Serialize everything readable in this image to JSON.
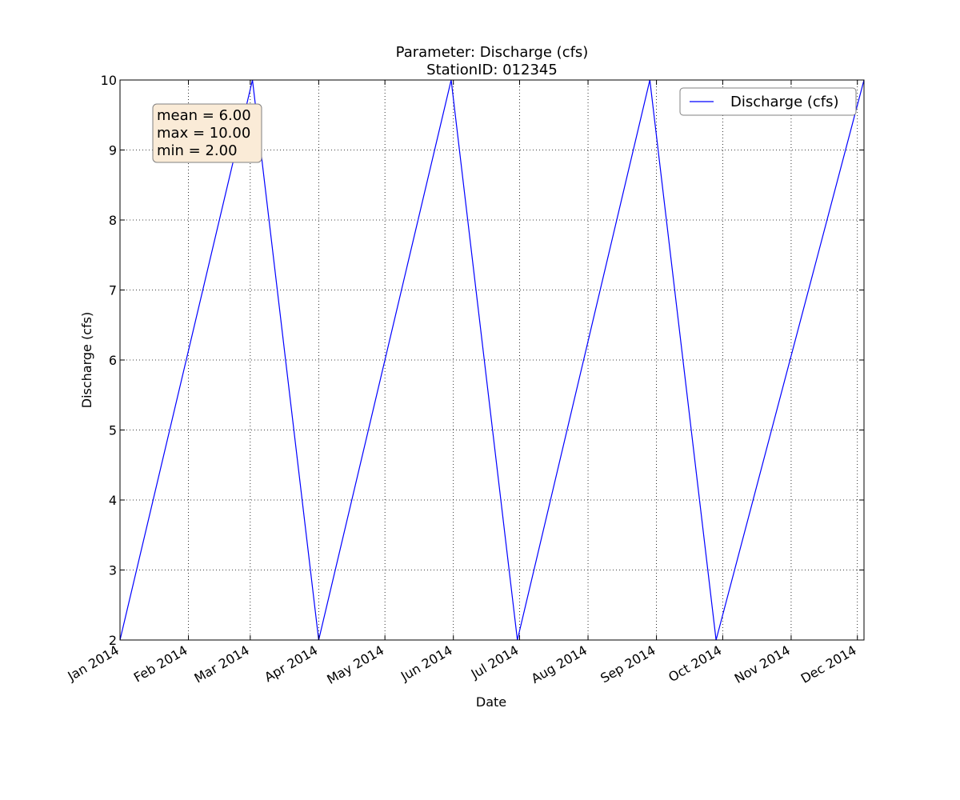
{
  "chart_data": {
    "type": "line",
    "title": "Parameter: Discharge (cfs)",
    "subtitle": "StationID: 012345",
    "xlabel": "Date",
    "ylabel": "Discharge (cfs)",
    "xlim": [
      "2014-01-01",
      "2014-12-04"
    ],
    "ylim": [
      2,
      10
    ],
    "yticks": [
      2,
      3,
      4,
      5,
      6,
      7,
      8,
      9,
      10
    ],
    "xticks": [
      {
        "date": "2014-01-01",
        "label": "Jan 2014"
      },
      {
        "date": "2014-02-01",
        "label": "Feb 2014"
      },
      {
        "date": "2014-03-01",
        "label": "Mar 2014"
      },
      {
        "date": "2014-04-01",
        "label": "Apr 2014"
      },
      {
        "date": "2014-05-01",
        "label": "May 2014"
      },
      {
        "date": "2014-06-01",
        "label": "Jun 2014"
      },
      {
        "date": "2014-07-01",
        "label": "Jul 2014"
      },
      {
        "date": "2014-08-01",
        "label": "Aug 2014"
      },
      {
        "date": "2014-09-01",
        "label": "Sep 2014"
      },
      {
        "date": "2014-10-01",
        "label": "Oct 2014"
      },
      {
        "date": "2014-11-01",
        "label": "Nov 2014"
      },
      {
        "date": "2014-12-01",
        "label": "Dec 2014"
      }
    ],
    "grid": true,
    "legend_position": "top-right",
    "series": [
      {
        "name": "Discharge (cfs)",
        "color": "#0000ff",
        "points": [
          {
            "x": "2014-01-01",
            "y": 2
          },
          {
            "x": "2014-03-02",
            "y": 10
          },
          {
            "x": "2014-04-01",
            "y": 2
          },
          {
            "x": "2014-05-31",
            "y": 10
          },
          {
            "x": "2014-06-30",
            "y": 2
          },
          {
            "x": "2014-08-29",
            "y": 10
          },
          {
            "x": "2014-09-28",
            "y": 2
          },
          {
            "x": "2014-12-04",
            "y": 10
          }
        ]
      }
    ],
    "annotations": {
      "stats_lines": [
        "mean = 6.00",
        "max = 10.00",
        "min = 2.00"
      ],
      "stats_box_color": "#faebd7"
    }
  }
}
